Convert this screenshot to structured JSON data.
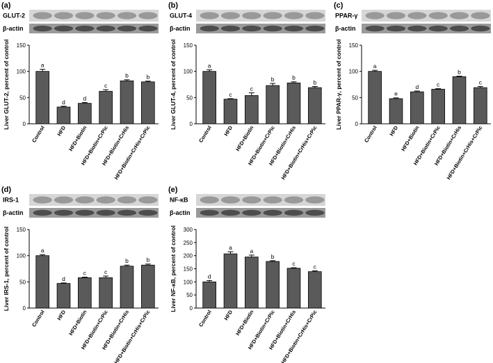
{
  "chart_data": [
    {
      "type": "bar",
      "panel": "(a)",
      "blot_labels": [
        "GLUT-2",
        "β-actin"
      ],
      "ylabel": "Liver GLUT-2, percent of control",
      "categories": [
        "Control",
        "HFD",
        "HFD+Biotin",
        "HFD+Biotin+CrPic",
        "HFD+Biotin+CrHis",
        "HFD+Biotin+CrHis+CrPic"
      ],
      "values": [
        100,
        32,
        39,
        62,
        82,
        80
      ],
      "errors": [
        4,
        1.5,
        1.5,
        3,
        2,
        1.5
      ],
      "annotations": [
        "a",
        "d",
        "d",
        "c",
        "b",
        "b"
      ],
      "color": "#5a5a5a",
      "ylim": [
        0,
        150
      ],
      "yticks": [
        0,
        50,
        100,
        150
      ]
    },
    {
      "type": "bar",
      "panel": "(b)",
      "blot_labels": [
        "GLUT-4",
        "β-actin"
      ],
      "ylabel": "Liver GLUT-4, percent of control",
      "categories": [
        "Control",
        "HFD",
        "HFD+Biotin",
        "HFD+Biotin+CrPic",
        "HFD+Biotin+CrHis",
        "HFD+Biotin+CrHis+CrPic"
      ],
      "values": [
        100,
        47,
        54,
        73,
        78,
        69
      ],
      "errors": [
        3,
        1,
        5,
        4,
        2,
        2
      ],
      "annotations": [
        "a",
        "c",
        "c",
        "b",
        "b",
        "b"
      ],
      "color": "#5a5a5a",
      "ylim": [
        0,
        150
      ],
      "yticks": [
        0,
        50,
        100,
        150
      ]
    },
    {
      "type": "bar",
      "panel": "(c)",
      "blot_labels": [
        "PPAR-γ",
        "β-actin"
      ],
      "ylabel": "Liver PPAR-γ, percent of control",
      "categories": [
        "Control",
        "HFD",
        "HFD+Biotin",
        "HFD+Biotin+CrPic",
        "HFD+Biotin+CrHis",
        "HFD+Biotin+CrHis+CrPic"
      ],
      "values": [
        100,
        48,
        61,
        66,
        90,
        69
      ],
      "errors": [
        2,
        1.5,
        1.5,
        1,
        1,
        2
      ],
      "annotations": [
        "a",
        "e",
        "d",
        "c",
        "b",
        "c"
      ],
      "color": "#5a5a5a",
      "ylim": [
        0,
        150
      ],
      "yticks": [
        0,
        50,
        100,
        150
      ]
    },
    {
      "type": "bar",
      "panel": "(d)",
      "blot_labels": [
        "IRS-1",
        "β-actin"
      ],
      "ylabel": "Liver IRS-1, percent of control",
      "categories": [
        "Control",
        "HFD",
        "HFD+Biotin",
        "HFD+Biotin+CrPic",
        "HFD+Biotin+CrHis",
        "HFD+Biotin+CrHis+CrPic"
      ],
      "values": [
        100,
        47,
        58,
        58,
        80,
        82
      ],
      "errors": [
        2,
        1,
        1,
        3,
        2,
        2
      ],
      "annotations": [
        "a",
        "d",
        "c",
        "c",
        "b",
        "b"
      ],
      "color": "#5a5a5a",
      "ylim": [
        0,
        150
      ],
      "yticks": [
        0,
        50,
        100,
        150
      ]
    },
    {
      "type": "bar",
      "panel": "(e)",
      "blot_labels": [
        "NF-κB",
        "β-actin"
      ],
      "ylabel": "Liver NF-κB, percent of control",
      "categories": [
        "Control",
        "HFD",
        "HFD+Biotin",
        "HFD+Biotin+CrPic",
        "HFD+Biotin+CrHis",
        "HFD+Biotin+CrHis+CrPic"
      ],
      "values": [
        100,
        207,
        195,
        178,
        152,
        139
      ],
      "errors": [
        5,
        8,
        7,
        3,
        2,
        3
      ],
      "annotations": [
        "d",
        "a",
        "a",
        "b",
        "c",
        "c"
      ],
      "color": "#5a5a5a",
      "ylim": [
        0,
        300
      ],
      "yticks": [
        0,
        50,
        100,
        150,
        200,
        250,
        300
      ]
    }
  ]
}
